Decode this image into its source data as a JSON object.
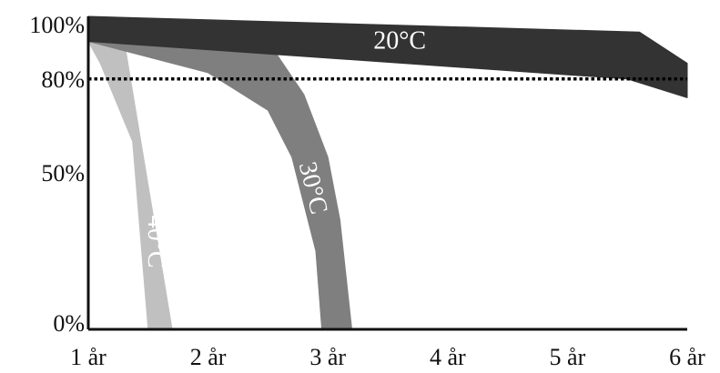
{
  "chart_data": {
    "type": "area",
    "title": "",
    "xlabel": "",
    "ylabel": "",
    "x_ticks": [
      "1 år",
      "2 år",
      "3 år",
      "4 år",
      "5 år",
      "6 år"
    ],
    "x_tick_values": [
      1,
      2,
      3,
      4,
      5,
      6
    ],
    "y_ticks": [
      "0%",
      "50%",
      "80%",
      "100%"
    ],
    "y_tick_values": [
      0,
      50,
      80,
      100
    ],
    "xlim": [
      1,
      6
    ],
    "ylim": [
      0,
      100
    ],
    "reference_line": {
      "y": 80,
      "style": "dotted"
    },
    "grid": false,
    "legend": "none",
    "series": [
      {
        "name": "40°C",
        "color": "#c0c0c0",
        "text_color": "#ffffff",
        "upper": [
          [
            1,
            92
          ],
          [
            1.3,
            92
          ],
          [
            1.7,
            0
          ]
        ],
        "lower": [
          [
            1,
            92
          ],
          [
            1.1,
            85
          ],
          [
            1.37,
            60
          ],
          [
            1.5,
            0
          ]
        ]
      },
      {
        "name": "30°C",
        "color": "#7f7f7f",
        "text_color": "#ffffff",
        "upper": [
          [
            1,
            92
          ],
          [
            2.5,
            92
          ],
          [
            2.8,
            75
          ],
          [
            3,
            55
          ],
          [
            3.1,
            35
          ],
          [
            3.2,
            0
          ]
        ],
        "lower": [
          [
            1,
            92
          ],
          [
            2,
            82
          ],
          [
            2.5,
            70
          ],
          [
            2.7,
            55
          ],
          [
            2.9,
            25
          ],
          [
            2.95,
            0
          ]
        ]
      },
      {
        "name": "20°C",
        "color": "#333333",
        "text_color": "#ffffff",
        "upper": [
          [
            1,
            100
          ],
          [
            5.6,
            95
          ],
          [
            6,
            85
          ]
        ],
        "lower": [
          [
            1,
            92
          ],
          [
            5.5,
            80
          ],
          [
            6,
            74
          ]
        ]
      }
    ]
  }
}
